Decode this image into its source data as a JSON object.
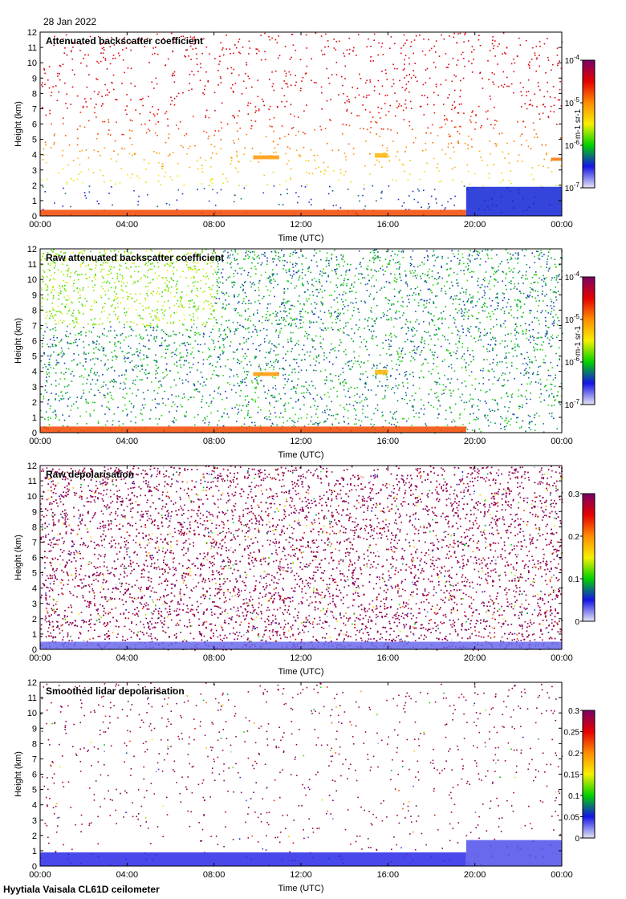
{
  "header": {
    "date": "28 Jan 2022"
  },
  "footer": {
    "instrument": "Hyytiala Vaisala CL61D ceilometer"
  },
  "colors": {
    "colormap": [
      "#e6e6f5",
      "#1414e6",
      "#00d200",
      "#f5f000",
      "#ff8c00",
      "#e60000",
      "#7a0066"
    ],
    "missing": "#d9d9d9"
  },
  "chart_data": [
    {
      "type": "heatmap",
      "title": "Attenuated backscatter coefficient",
      "xlabel": "Time (UTC)",
      "ylabel": "Height (km)",
      "xticks": [
        "00:00",
        "04:00",
        "08:00",
        "12:00",
        "16:00",
        "20:00",
        "00:00"
      ],
      "xlim_hours": [
        0,
        24
      ],
      "ylim": [
        0,
        12
      ],
      "yticks": [
        0,
        1,
        2,
        3,
        4,
        5,
        6,
        7,
        8,
        9,
        10,
        11,
        12
      ],
      "colorbar": {
        "scale": "log",
        "range": [
          1e-07,
          0.0001
        ],
        "ticks": [
          "10-7",
          "10-6",
          "10-5",
          "10-4"
        ],
        "unit": "m-1 sr-1"
      },
      "features": [
        {
          "name": "surface aerosol layer",
          "time_hours": [
            0,
            19.6
          ],
          "height_km": [
            0,
            0.4
          ],
          "level": 0.75
        },
        {
          "name": "cloud layer",
          "time_hours": [
            9.8,
            11.0
          ],
          "height_km": [
            3.7,
            3.95
          ],
          "level": 0.65
        },
        {
          "name": "cloud layer",
          "time_hours": [
            15.4,
            16.0
          ],
          "height_km": [
            3.8,
            4.1
          ],
          "level": 0.6
        },
        {
          "name": "cloud layer",
          "time_hours": [
            23.5,
            24
          ],
          "height_km": [
            3.6,
            3.8
          ],
          "level": 0.7
        },
        {
          "name": "low layer",
          "time_hours": [
            19.6,
            24
          ],
          "height_km": [
            0,
            1.9
          ],
          "level": 0.18
        }
      ]
    },
    {
      "type": "heatmap",
      "title": "Raw attenuated backscatter coefficient",
      "xlabel": "Time (UTC)",
      "ylabel": "Height (km)",
      "xticks": [
        "00:00",
        "04:00",
        "08:00",
        "12:00",
        "16:00",
        "20:00",
        "00:00"
      ],
      "xlim_hours": [
        0,
        24
      ],
      "ylim": [
        0,
        12
      ],
      "yticks": [
        0,
        1,
        2,
        3,
        4,
        5,
        6,
        7,
        8,
        9,
        10,
        11,
        12
      ],
      "colorbar": {
        "scale": "log",
        "range": [
          1e-07,
          0.0001
        ],
        "ticks": [
          "10-7",
          "10-6",
          "10-5",
          "10-4"
        ],
        "unit": "m-1 sr-1"
      },
      "features": [
        {
          "name": "surface aerosol layer",
          "time_hours": [
            0,
            19.6
          ],
          "height_km": [
            0,
            0.4
          ],
          "level": 0.75
        },
        {
          "name": "cloud layer",
          "time_hours": [
            9.8,
            11.0
          ],
          "height_km": [
            3.7,
            3.95
          ],
          "level": 0.65
        },
        {
          "name": "cloud layer",
          "time_hours": [
            15.4,
            16.0
          ],
          "height_km": [
            3.8,
            4.1
          ],
          "level": 0.6
        },
        {
          "name": "noisy upper region",
          "time_hours": [
            0,
            24
          ],
          "height_km": [
            1,
            12
          ],
          "level": 0.35
        }
      ]
    },
    {
      "type": "heatmap",
      "title": "Raw depolarisation",
      "xlabel": "Time (UTC)",
      "ylabel": "Height (km)",
      "xticks": [
        "00:00",
        "04:00",
        "08:00",
        "12:00",
        "16:00",
        "20:00",
        "00:00"
      ],
      "xlim_hours": [
        0,
        24
      ],
      "ylim": [
        0,
        12
      ],
      "yticks": [
        0,
        1,
        2,
        3,
        4,
        5,
        6,
        7,
        8,
        9,
        10,
        11,
        12
      ],
      "colorbar": {
        "scale": "linear",
        "range": [
          0,
          0.3
        ],
        "ticks": [
          "0",
          "0.1",
          "0.2",
          "0.3"
        ]
      },
      "features": [
        {
          "name": "noisy field",
          "time_hours": [
            0,
            24
          ],
          "height_km": [
            0.5,
            12
          ],
          "level": 0.9
        },
        {
          "name": "surface layer",
          "time_hours": [
            0,
            24
          ],
          "height_km": [
            0,
            0.5
          ],
          "level": 0.1
        }
      ]
    },
    {
      "type": "heatmap",
      "title": "Smoothed lidar depolarisation",
      "xlabel": "Time (UTC)",
      "ylabel": "Height (km)",
      "xticks": [
        "00:00",
        "04:00",
        "08:00",
        "12:00",
        "16:00",
        "20:00",
        "00:00"
      ],
      "xlim_hours": [
        0,
        24
      ],
      "ylim": [
        0,
        12
      ],
      "yticks": [
        0,
        1,
        2,
        3,
        4,
        5,
        6,
        7,
        8,
        9,
        10,
        11,
        12
      ],
      "colorbar": {
        "scale": "linear",
        "range": [
          0,
          0.3
        ],
        "ticks": [
          "0",
          "0.05",
          "0.1",
          "0.15",
          "0.2",
          "0.25",
          "0.3"
        ]
      },
      "features": [
        {
          "name": "surface layer",
          "time_hours": [
            0,
            19.6
          ],
          "height_km": [
            0,
            0.9
          ],
          "level": 0.15
        },
        {
          "name": "low layer",
          "time_hours": [
            19.6,
            24
          ],
          "height_km": [
            0,
            1.7
          ],
          "level": 0.12
        },
        {
          "name": "sparse speckle",
          "time_hours": [
            0,
            24
          ],
          "height_km": [
            1,
            12
          ],
          "level": 0.9
        }
      ]
    }
  ]
}
